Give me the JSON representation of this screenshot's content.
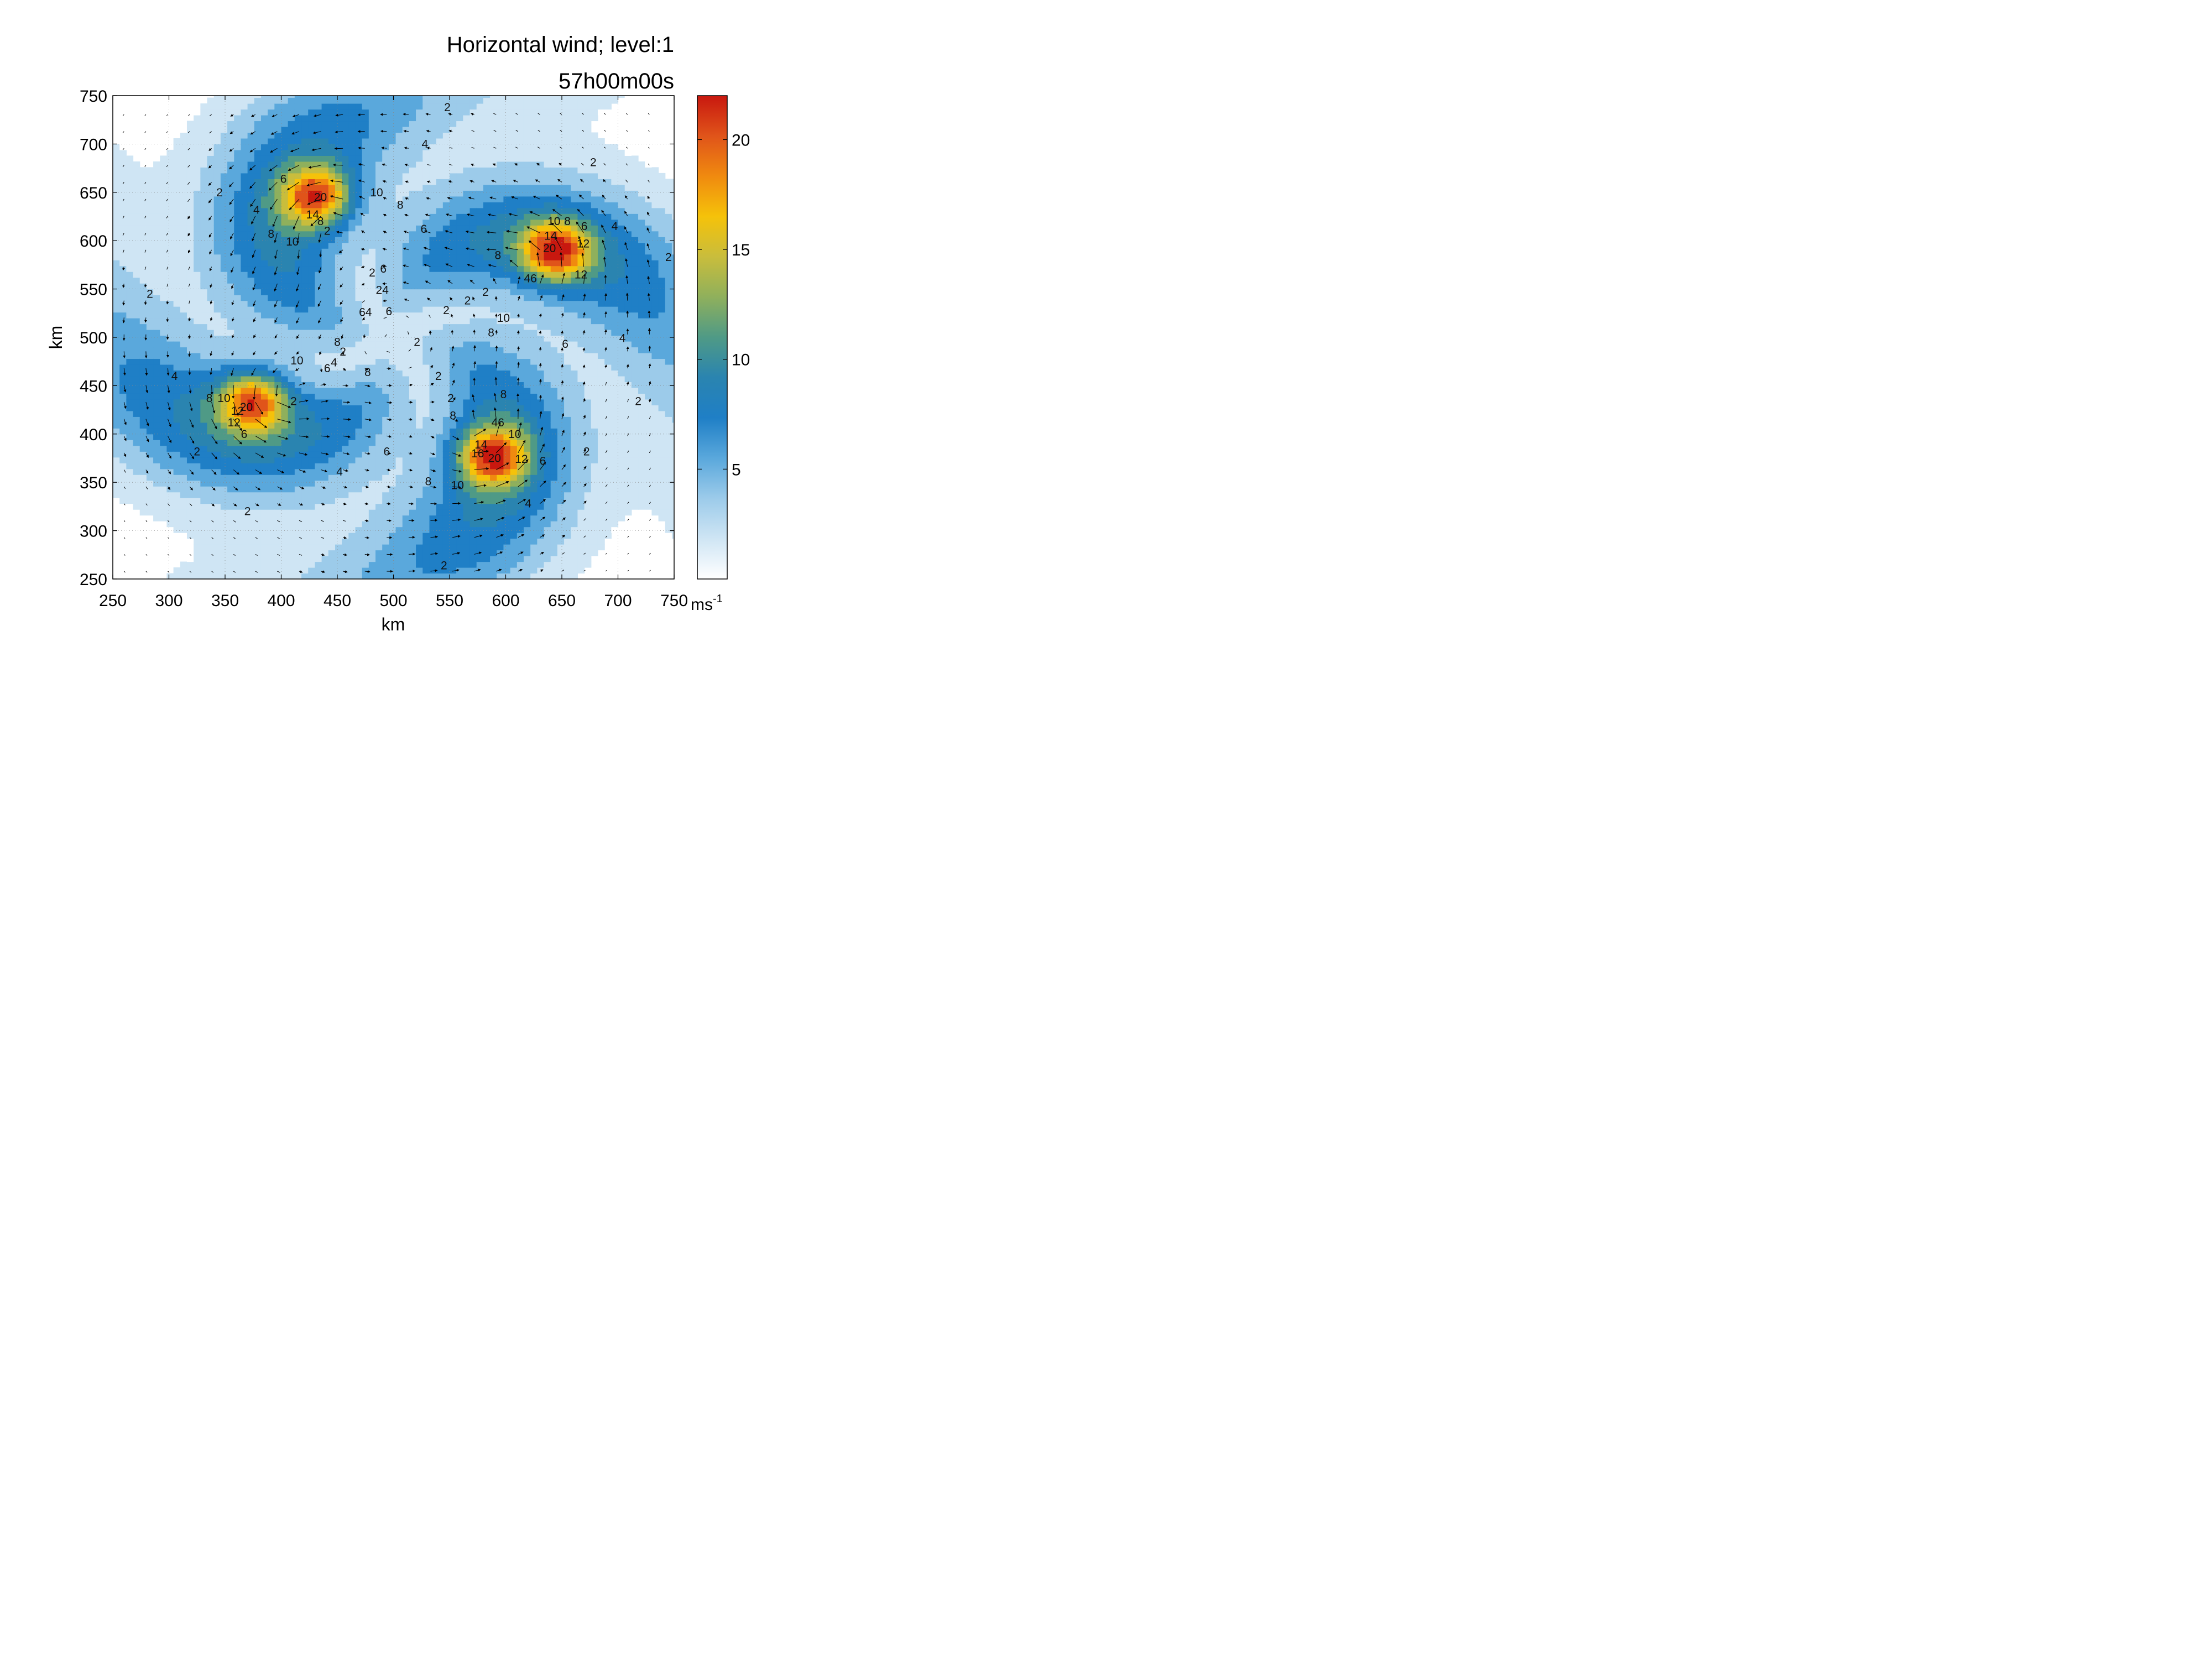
{
  "chart_data": {
    "type": "heatmap",
    "title_line1": "Horizontal wind; level:1",
    "title_line2": "57h00m00s",
    "xlabel": "km",
    "ylabel": "km",
    "xlim": [
      250,
      750
    ],
    "ylim": [
      250,
      750
    ],
    "x_ticks": [
      "250",
      "300",
      "350",
      "400",
      "450",
      "500",
      "550",
      "600",
      "650",
      "700",
      "750"
    ],
    "y_ticks": [
      "250",
      "300",
      "350",
      "400",
      "450",
      "500",
      "550",
      "600",
      "650",
      "700",
      "750"
    ],
    "grid": true,
    "colorbar": {
      "range": [
        0,
        22
      ],
      "ticks": [
        "5",
        "10",
        "15",
        "20"
      ],
      "unit": "ms",
      "unit_exp": "-1",
      "colors": [
        "#ffffff",
        "#cfe5f4",
        "#9ccbea",
        "#5aa8dc",
        "#1f7fc6",
        "#2a84b0",
        "#4f9a86",
        "#8fb05c",
        "#c9bd3c",
        "#f5c20a",
        "#f08a0f",
        "#e0541a",
        "#c8180f"
      ]
    },
    "vortices": [
      {
        "x": 432,
        "y": 646,
        "peak": 20
      },
      {
        "x": 645,
        "y": 590,
        "peak": 20
      },
      {
        "x": 375,
        "y": 434,
        "peak": 20
      },
      {
        "x": 588,
        "y": 377,
        "peak": 20
      }
    ],
    "contour_labels": [
      {
        "x": 548,
        "y": 738,
        "t": "2"
      },
      {
        "x": 528,
        "y": 700,
        "t": "4"
      },
      {
        "x": 678,
        "y": 681,
        "t": "2"
      },
      {
        "x": 345,
        "y": 650,
        "t": "2"
      },
      {
        "x": 402,
        "y": 664,
        "t": "6"
      },
      {
        "x": 378,
        "y": 632,
        "t": "4"
      },
      {
        "x": 435,
        "y": 645,
        "t": "20"
      },
      {
        "x": 485,
        "y": 650,
        "t": "10"
      },
      {
        "x": 506,
        "y": 637,
        "t": "8"
      },
      {
        "x": 428,
        "y": 627,
        "t": "14"
      },
      {
        "x": 435,
        "y": 620,
        "t": "8"
      },
      {
        "x": 441,
        "y": 610,
        "t": "2"
      },
      {
        "x": 391,
        "y": 607,
        "t": "8"
      },
      {
        "x": 410,
        "y": 599,
        "t": "10"
      },
      {
        "x": 527,
        "y": 612,
        "t": "6"
      },
      {
        "x": 643,
        "y": 620,
        "t": "10"
      },
      {
        "x": 655,
        "y": 620,
        "t": "8"
      },
      {
        "x": 670,
        "y": 615,
        "t": "6"
      },
      {
        "x": 697,
        "y": 615,
        "t": "4"
      },
      {
        "x": 640,
        "y": 605,
        "t": "14"
      },
      {
        "x": 639,
        "y": 592,
        "t": "20"
      },
      {
        "x": 669,
        "y": 597,
        "t": "12"
      },
      {
        "x": 745,
        "y": 583,
        "t": "2"
      },
      {
        "x": 593,
        "y": 585,
        "t": "8"
      },
      {
        "x": 481,
        "y": 567,
        "t": "2"
      },
      {
        "x": 491,
        "y": 571,
        "t": "6"
      },
      {
        "x": 667,
        "y": 565,
        "t": "12"
      },
      {
        "x": 622,
        "y": 561,
        "t": "46"
      },
      {
        "x": 490,
        "y": 549,
        "t": "24"
      },
      {
        "x": 582,
        "y": 547,
        "t": "2"
      },
      {
        "x": 566,
        "y": 538,
        "t": "2"
      },
      {
        "x": 283,
        "y": 545,
        "t": "2"
      },
      {
        "x": 547,
        "y": 528,
        "t": "2"
      },
      {
        "x": 475,
        "y": 526,
        "t": "64"
      },
      {
        "x": 496,
        "y": 527,
        "t": "6"
      },
      {
        "x": 598,
        "y": 520,
        "t": "10"
      },
      {
        "x": 587,
        "y": 505,
        "t": "8"
      },
      {
        "x": 521,
        "y": 495,
        "t": "2"
      },
      {
        "x": 704,
        "y": 499,
        "t": "4"
      },
      {
        "x": 450,
        "y": 495,
        "t": "8"
      },
      {
        "x": 653,
        "y": 493,
        "t": "6"
      },
      {
        "x": 455,
        "y": 485,
        "t": "2"
      },
      {
        "x": 414,
        "y": 476,
        "t": "10"
      },
      {
        "x": 447,
        "y": 474,
        "t": "4"
      },
      {
        "x": 441,
        "y": 468,
        "t": "6"
      },
      {
        "x": 477,
        "y": 464,
        "t": "8"
      },
      {
        "x": 540,
        "y": 460,
        "t": "2"
      },
      {
        "x": 305,
        "y": 460,
        "t": "4"
      },
      {
        "x": 598,
        "y": 441,
        "t": "8"
      },
      {
        "x": 336,
        "y": 437,
        "t": "8"
      },
      {
        "x": 349,
        "y": 437,
        "t": "10"
      },
      {
        "x": 411,
        "y": 434,
        "t": "2"
      },
      {
        "x": 551,
        "y": 437,
        "t": "2"
      },
      {
        "x": 718,
        "y": 434,
        "t": "2"
      },
      {
        "x": 369,
        "y": 428,
        "t": "20"
      },
      {
        "x": 361,
        "y": 424,
        "t": "12"
      },
      {
        "x": 553,
        "y": 419,
        "t": "8"
      },
      {
        "x": 593,
        "y": 412,
        "t": "46"
      },
      {
        "x": 358,
        "y": 412,
        "t": "12"
      },
      {
        "x": 608,
        "y": 400,
        "t": "10"
      },
      {
        "x": 367,
        "y": 400,
        "t": "6"
      },
      {
        "x": 578,
        "y": 389,
        "t": "14"
      },
      {
        "x": 575,
        "y": 380,
        "t": "16"
      },
      {
        "x": 590,
        "y": 375,
        "t": "20"
      },
      {
        "x": 614,
        "y": 374,
        "t": "12"
      },
      {
        "x": 633,
        "y": 372,
        "t": "6"
      },
      {
        "x": 672,
        "y": 382,
        "t": "2"
      },
      {
        "x": 325,
        "y": 382,
        "t": "2"
      },
      {
        "x": 494,
        "y": 382,
        "t": "6"
      },
      {
        "x": 452,
        "y": 361,
        "t": "4"
      },
      {
        "x": 531,
        "y": 351,
        "t": "8"
      },
      {
        "x": 557,
        "y": 347,
        "t": "10"
      },
      {
        "x": 620,
        "y": 328,
        "t": "4"
      },
      {
        "x": 370,
        "y": 320,
        "t": "2"
      },
      {
        "x": 545,
        "y": 264,
        "t": "2"
      }
    ]
  }
}
